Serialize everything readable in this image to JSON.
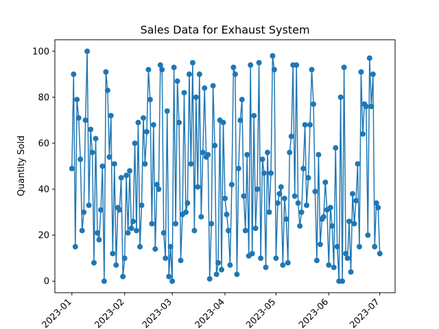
{
  "chart_data": {
    "type": "line",
    "title": "Sales Data for Exhaust System",
    "xlabel": "",
    "ylabel": "Quantity Sold",
    "x_axis": "date",
    "xlim": [
      "2022-12-22",
      "2023-07-10"
    ],
    "ylim": [
      -5,
      105
    ],
    "y_ticks": [
      0,
      20,
      40,
      60,
      80,
      100
    ],
    "x_ticks": [
      "2023-01",
      "2023-02",
      "2023-03",
      "2023-04",
      "2023-05",
      "2023-06",
      "2023-07"
    ],
    "x_tick_dates": [
      "2023-01-01",
      "2023-02-01",
      "2023-03-01",
      "2023-04-01",
      "2023-05-01",
      "2023-06-01",
      "2023-07-01"
    ],
    "grid": false,
    "legend": "none",
    "series_color": "#1f77b4",
    "markers": "circle",
    "x": [
      "2023-01-01",
      "2023-01-02",
      "2023-01-03",
      "2023-01-04",
      "2023-01-05",
      "2023-01-06",
      "2023-01-07",
      "2023-01-08",
      "2023-01-09",
      "2023-01-10",
      "2023-01-11",
      "2023-01-12",
      "2023-01-13",
      "2023-01-14",
      "2023-01-15",
      "2023-01-16",
      "2023-01-17",
      "2023-01-18",
      "2023-01-19",
      "2023-01-20",
      "2023-01-21",
      "2023-01-22",
      "2023-01-23",
      "2023-01-24",
      "2023-01-25",
      "2023-01-26",
      "2023-01-27",
      "2023-01-28",
      "2023-01-29",
      "2023-01-30",
      "2023-01-31",
      "2023-02-01",
      "2023-02-02",
      "2023-02-03",
      "2023-02-04",
      "2023-02-05",
      "2023-02-06",
      "2023-02-07",
      "2023-02-08",
      "2023-02-09",
      "2023-02-10",
      "2023-02-11",
      "2023-02-12",
      "2023-02-13",
      "2023-02-14",
      "2023-02-15",
      "2023-02-16",
      "2023-02-17",
      "2023-02-18",
      "2023-02-19",
      "2023-02-20",
      "2023-02-21",
      "2023-02-22",
      "2023-02-23",
      "2023-02-24",
      "2023-02-25",
      "2023-02-26",
      "2023-02-27",
      "2023-02-28",
      "2023-03-01",
      "2023-03-02",
      "2023-03-03",
      "2023-03-04",
      "2023-03-05",
      "2023-03-06",
      "2023-03-07",
      "2023-03-08",
      "2023-03-09",
      "2023-03-10",
      "2023-03-11",
      "2023-03-12",
      "2023-03-13",
      "2023-03-14",
      "2023-03-15",
      "2023-03-16",
      "2023-03-17",
      "2023-03-18",
      "2023-03-19",
      "2023-03-20",
      "2023-03-21",
      "2023-03-22",
      "2023-03-23",
      "2023-03-24",
      "2023-03-25",
      "2023-03-26",
      "2023-03-27",
      "2023-03-28",
      "2023-03-29",
      "2023-03-30",
      "2023-03-31",
      "2023-04-01",
      "2023-04-02",
      "2023-04-03",
      "2023-04-04",
      "2023-04-05",
      "2023-04-06",
      "2023-04-07",
      "2023-04-08",
      "2023-04-09",
      "2023-04-10",
      "2023-04-11",
      "2023-04-12",
      "2023-04-13",
      "2023-04-14",
      "2023-04-15",
      "2023-04-16",
      "2023-04-17",
      "2023-04-18",
      "2023-04-19",
      "2023-04-20",
      "2023-04-21",
      "2023-04-22",
      "2023-04-23",
      "2023-04-24",
      "2023-04-25",
      "2023-04-26",
      "2023-04-27",
      "2023-04-28",
      "2023-04-29",
      "2023-04-30",
      "2023-05-01",
      "2023-05-02",
      "2023-05-03",
      "2023-05-04",
      "2023-05-05",
      "2023-05-06",
      "2023-05-07",
      "2023-05-08",
      "2023-05-09",
      "2023-05-10",
      "2023-05-11",
      "2023-05-12",
      "2023-05-13",
      "2023-05-14",
      "2023-05-15",
      "2023-05-16",
      "2023-05-17",
      "2023-05-18",
      "2023-05-19",
      "2023-05-20",
      "2023-05-21",
      "2023-05-22",
      "2023-05-23",
      "2023-05-24",
      "2023-05-25",
      "2023-05-26",
      "2023-05-27",
      "2023-05-28",
      "2023-05-29",
      "2023-05-30",
      "2023-05-31",
      "2023-06-01",
      "2023-06-02",
      "2023-06-03",
      "2023-06-04",
      "2023-06-05",
      "2023-06-06",
      "2023-06-07",
      "2023-06-08",
      "2023-06-09",
      "2023-06-10",
      "2023-06-11",
      "2023-06-12",
      "2023-06-13",
      "2023-06-14",
      "2023-06-15",
      "2023-06-16",
      "2023-06-17",
      "2023-06-18",
      "2023-06-19",
      "2023-06-20",
      "2023-06-21",
      "2023-06-22",
      "2023-06-23",
      "2023-06-24",
      "2023-06-25",
      "2023-06-26",
      "2023-06-27",
      "2023-06-28",
      "2023-06-29",
      "2023-06-30",
      "2023-07-01"
    ],
    "y": [
      49,
      90,
      15,
      79,
      71,
      53,
      22,
      30,
      70,
      100,
      33,
      66,
      56,
      8,
      62,
      21,
      18,
      31,
      50,
      0,
      91,
      83,
      54,
      72,
      12,
      51,
      7,
      32,
      31,
      45,
      2,
      10,
      46,
      21,
      48,
      23,
      26,
      60,
      22,
      69,
      15,
      33,
      71,
      51,
      65,
      92,
      79,
      25,
      68,
      14,
      42,
      40,
      94,
      92,
      21,
      10,
      74,
      2,
      15,
      0,
      93,
      25,
      87,
      69,
      9,
      29,
      82,
      30,
      34,
      90,
      51,
      95,
      22,
      80,
      41,
      90,
      28,
      56,
      84,
      54,
      55,
      1,
      25,
      85,
      59,
      3,
      8,
      70,
      5,
      69,
      36,
      29,
      22,
      7,
      42,
      93,
      90,
      3,
      49,
      70,
      79,
      37,
      22,
      55,
      11,
      94,
      12,
      72,
      23,
      40,
      95,
      10,
      53,
      47,
      6,
      56,
      30,
      47,
      98,
      92,
      10,
      34,
      38,
      41,
      7,
      36,
      27,
      8,
      56,
      63,
      94,
      37,
      94,
      34,
      24,
      30,
      49,
      68,
      33,
      45,
      68,
      92,
      77,
      39,
      9,
      55,
      16,
      27,
      28,
      43,
      31,
      7,
      32,
      24,
      6,
      58,
      15,
      0,
      80,
      0,
      93,
      12,
      10,
      26,
      4,
      38,
      25,
      35,
      51,
      15,
      91,
      64,
      77,
      76,
      20,
      97,
      76,
      90,
      15,
      34,
      32,
      12
    ]
  }
}
